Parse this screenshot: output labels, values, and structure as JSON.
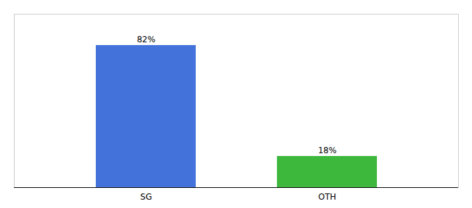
{
  "chart_data": {
    "type": "bar",
    "categories": [
      "SG",
      "OTH"
    ],
    "values": [
      82,
      18
    ],
    "colors": [
      "#4472db",
      "#3db83d"
    ],
    "value_labels": [
      "82%",
      "18%"
    ],
    "data_labels": true,
    "ylim": [
      0,
      100
    ],
    "tick_labels": "x",
    "grid": false
  }
}
